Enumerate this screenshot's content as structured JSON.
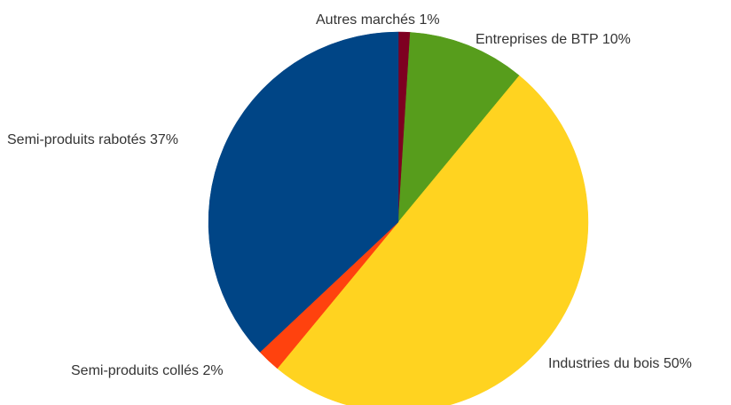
{
  "chart_data": {
    "type": "pie",
    "title": "",
    "start_angle_deg": 0,
    "direction": "clockwise",
    "slices": [
      {
        "label": "Autres marchés 1%",
        "value": 1,
        "color": "#7e0021"
      },
      {
        "label": "Entreprises de BTP 10%",
        "value": 10,
        "color": "#579d1c"
      },
      {
        "label": "Industries du bois  50%",
        "value": 50,
        "color": "#ffd320"
      },
      {
        "label": "Semi-produits collés 2%",
        "value": 2,
        "color": "#ff420e"
      },
      {
        "label": "Semi-produits rabotés 37%",
        "value": 37,
        "color": "#004586"
      }
    ],
    "legend": "none"
  }
}
